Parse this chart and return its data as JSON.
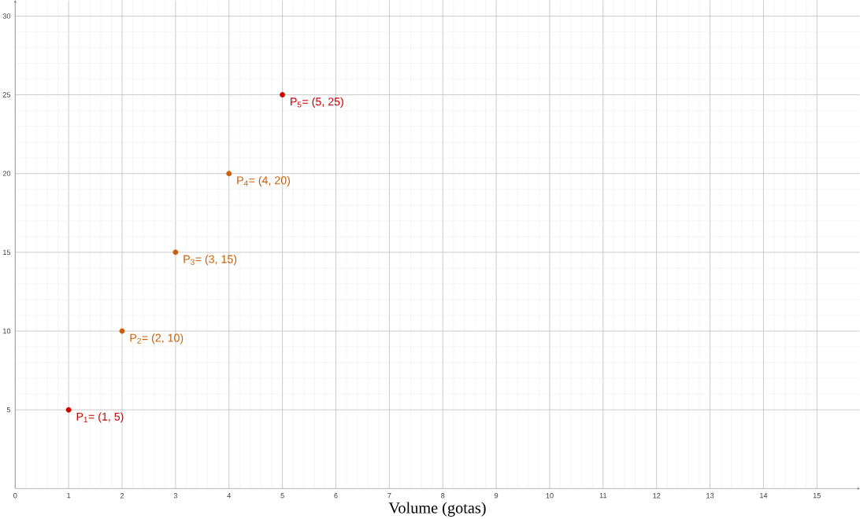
{
  "chart_data": {
    "type": "scatter",
    "xlabel": "Volume (gotas)",
    "x": [
      1,
      2,
      3,
      4,
      5
    ],
    "values": [
      5,
      10,
      15,
      20,
      25
    ],
    "colors": [
      "#cc0000",
      "#c8600a",
      "#c8600a",
      "#c8600a",
      "#cc0000"
    ],
    "annotations": [
      {
        "text": "P$_{1}$= (1, 5)",
        "x": 1,
        "y": 5
      },
      {
        "text": "P$_{2}$= (2, 10)",
        "x": 2,
        "y": 10
      },
      {
        "text": "P$_{3}$= (3, 15)",
        "x": 3,
        "y": 15
      },
      {
        "text": "P$_{4}$= (4, 20)",
        "x": 4,
        "y": 20
      },
      {
        "text": "P$_{5}$= (5, 25)",
        "x": 5,
        "y": 25
      }
    ],
    "xlim": [
      0,
      15.8
    ],
    "ylim": [
      0,
      31
    ],
    "xticks": [
      0,
      1,
      2,
      3,
      4,
      5,
      6,
      7,
      8,
      9,
      10,
      11,
      12,
      13,
      14,
      15
    ],
    "yticks": [
      5,
      10,
      15,
      20,
      25,
      30
    ],
    "grid": true,
    "marker": "circle"
  }
}
